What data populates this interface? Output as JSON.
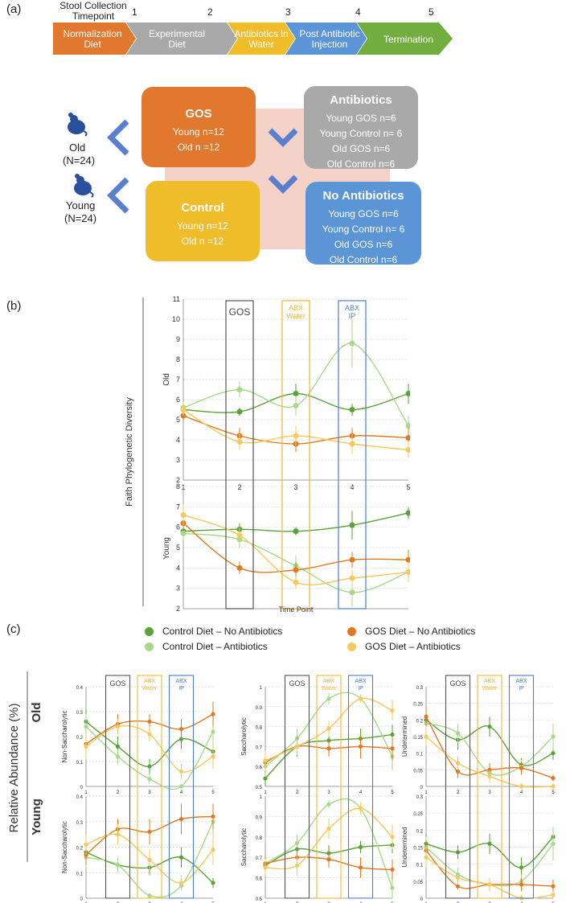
{
  "panel_a": {
    "label": "(a)",
    "timeline_title": "Stool Collection Timepoint",
    "timepoints": [
      "1",
      "2",
      "3",
      "4",
      "5"
    ],
    "steps": [
      {
        "label": "Normalization Diet",
        "color": "#e0782e"
      },
      {
        "label": "Experimental Diet",
        "color": "#a9a9a9"
      },
      {
        "label": "Antibiotics in Water",
        "color": "#efbd2a"
      },
      {
        "label": "Post Antibiotic Injection",
        "color": "#5b95d6"
      },
      {
        "label": "Termination",
        "color": "#72ad3f"
      }
    ],
    "groups": [
      {
        "label": "Old",
        "n": "(N=24)"
      },
      {
        "label": "Young",
        "n": "(N=24)"
      }
    ],
    "gos_box": {
      "title": "GOS",
      "lines": [
        "Young n=12",
        "Old n =12"
      ],
      "color": "#e0782e"
    },
    "control_box": {
      "title": "Control",
      "lines": [
        "Young n=12",
        "Old n =12"
      ],
      "color": "#efbd2a"
    },
    "abx_box": {
      "title": "Antibiotics",
      "lines": [
        "Young GOS n=6",
        "Young Control n= 6",
        "Old GOS n=6",
        "Old Control n=6"
      ],
      "color": "#a9a9a9"
    },
    "noabx_box": {
      "title": "No Antibiotics",
      "lines": [
        "Young GOS n=6",
        "Young Control n= 6",
        "Old GOS n=6",
        "Old Control n=6"
      ],
      "color": "#5b95d6"
    }
  },
  "panel_b": {
    "label": "(b)"
  },
  "panel_c": {
    "label": "(c)",
    "row_title": "Relative Abundance (%)",
    "legend": [
      {
        "label": "Control Diet – No Antibiotics",
        "color": "#5aa23a"
      },
      {
        "label": "GOS Diet – No Antibiotics",
        "color": "#e07a22"
      },
      {
        "label": "Control Diet – Antibiotics",
        "color": "#a8d98a"
      },
      {
        "label": "GOS Diet – Antibiotics",
        "color": "#f4c95d"
      }
    ]
  },
  "colors": {
    "control_noabx": "#5aa23a",
    "gos_noabx": "#e07a22",
    "control_abx": "#a8d98a",
    "gos_abx": "#f4c95d",
    "gos_win": "#555555",
    "abxw_win": "#f2b632",
    "abxip_win": "#4a7fc8"
  },
  "chart_data": [
    {
      "type": "line",
      "title": "Faith Phylogenetic Diversity – Old",
      "ylabel": "Faith Phylogenetic Diversity",
      "facet": "Old",
      "x": [
        1,
        2,
        3,
        4,
        5
      ],
      "ylim": [
        2,
        11
      ],
      "yticks": [
        2,
        3,
        4,
        5,
        6,
        7,
        8,
        9,
        10,
        11
      ],
      "windows": [
        {
          "label": "GOS",
          "x": 2
        },
        {
          "label": "ABX Water",
          "x": 3
        },
        {
          "label": "ABX IP",
          "x": 4
        }
      ],
      "series": [
        {
          "name": "Control Diet – No Antibiotics",
          "color": "#5aa23a",
          "values": [
            5.5,
            5.4,
            6.3,
            5.5,
            6.3
          ],
          "err": [
            0.3,
            0.2,
            0.5,
            0.3,
            0.5
          ]
        },
        {
          "name": "Control Diet – Antibiotics",
          "color": "#a8d98a",
          "values": [
            5.6,
            6.5,
            5.7,
            8.8,
            4.7
          ],
          "err": [
            0.3,
            0.4,
            0.5,
            1.2,
            0.5
          ]
        },
        {
          "name": "GOS Diet – No Antibiotics",
          "color": "#e07a22",
          "values": [
            5.2,
            4.2,
            3.8,
            4.2,
            4.1
          ],
          "err": [
            0.3,
            0.4,
            0.4,
            0.4,
            0.5
          ]
        },
        {
          "name": "GOS Diet – Antibiotics",
          "color": "#f4c95d",
          "values": [
            5.5,
            3.9,
            4.2,
            3.8,
            3.5
          ],
          "err": [
            0.3,
            0.4,
            0.5,
            0.5,
            0.4
          ]
        }
      ]
    },
    {
      "type": "line",
      "title": "Faith Phylogenetic Diversity – Young",
      "facet": "Young",
      "xlabel": "Time Point",
      "x": [
        1,
        2,
        3,
        4,
        5
      ],
      "ylim": [
        2,
        8
      ],
      "yticks": [
        2,
        3,
        4,
        5,
        6,
        7,
        8
      ],
      "series": [
        {
          "name": "Control Diet – No Antibiotics",
          "color": "#5aa23a",
          "values": [
            5.8,
            5.9,
            5.8,
            6.1,
            6.7
          ],
          "err": [
            0.3,
            0.3,
            0.2,
            0.7,
            0.3
          ]
        },
        {
          "name": "Control Diet – Antibiotics",
          "color": "#a8d98a",
          "values": [
            5.7,
            5.4,
            4.1,
            2.8,
            3.8
          ],
          "err": [
            0.3,
            0.4,
            0.5,
            0.7,
            0.5
          ]
        },
        {
          "name": "GOS Diet – No Antibiotics",
          "color": "#e07a22",
          "values": [
            6.2,
            4.0,
            3.9,
            4.4,
            4.4
          ],
          "err": [
            0.4,
            0.3,
            0.4,
            0.4,
            0.5
          ]
        },
        {
          "name": "GOS Diet – Antibiotics",
          "color": "#f4c95d",
          "values": [
            6.6,
            5.6,
            3.3,
            3.5,
            3.8
          ],
          "err": [
            0.5,
            0.4,
            0.3,
            0.4,
            0.5
          ]
        }
      ]
    },
    {
      "type": "line",
      "facet": "Old",
      "ylabel": "Non-Saccharolytic",
      "ylim": [
        0,
        0.4
      ],
      "yticks": [
        0,
        0.1,
        0.2,
        0.3,
        0.4
      ],
      "x": [
        1,
        2,
        3,
        4,
        5
      ],
      "series": [
        {
          "name": "Control Diet – No Antibiotics",
          "color": "#5aa23a",
          "values": [
            0.26,
            0.16,
            0.08,
            0.19,
            0.14
          ],
          "err": [
            0.05,
            0.04,
            0.03,
            0.04,
            0.04
          ]
        },
        {
          "name": "Control Diet – Antibiotics",
          "color": "#a8d98a",
          "values": [
            0.24,
            0.12,
            0.03,
            0.0,
            0.22
          ],
          "err": [
            0.05,
            0.03,
            0.02,
            0.01,
            0.06
          ]
        },
        {
          "name": "GOS Diet – No Antibiotics",
          "color": "#e07a22",
          "values": [
            0.17,
            0.25,
            0.26,
            0.23,
            0.29
          ],
          "err": [
            0.04,
            0.04,
            0.03,
            0.04,
            0.05
          ]
        },
        {
          "name": "GOS Diet – Antibiotics",
          "color": "#f4c95d",
          "values": [
            0.16,
            0.24,
            0.21,
            0.06,
            0.12
          ],
          "err": [
            0.05,
            0.03,
            0.03,
            0.03,
            0.05
          ]
        }
      ]
    },
    {
      "type": "line",
      "facet": "Old",
      "ylabel": "Saccharolytic",
      "ylim": [
        0.5,
        1.0
      ],
      "yticks": [
        0.5,
        0.6,
        0.7,
        0.8,
        0.9,
        1
      ],
      "x": [
        1,
        2,
        3,
        4,
        5
      ],
      "series": [
        {
          "name": "Control Diet – No Antibiotics",
          "color": "#5aa23a",
          "values": [
            0.54,
            0.7,
            0.73,
            0.74,
            0.76
          ],
          "err": [
            0.05,
            0.05,
            0.05,
            0.05,
            0.05
          ]
        },
        {
          "name": "Control Diet – Antibiotics",
          "color": "#a8d98a",
          "values": [
            0.6,
            0.74,
            0.94,
            0.94,
            0.65
          ],
          "err": [
            0.05,
            0.05,
            0.03,
            0.02,
            0.07
          ]
        },
        {
          "name": "GOS Diet – No Antibiotics",
          "color": "#e07a22",
          "values": [
            0.62,
            0.7,
            0.69,
            0.7,
            0.69
          ],
          "err": [
            0.05,
            0.05,
            0.04,
            0.06,
            0.06
          ]
        },
        {
          "name": "GOS Diet – Antibiotics",
          "color": "#f4c95d",
          "values": [
            0.63,
            0.7,
            0.79,
            0.94,
            0.88
          ],
          "err": [
            0.05,
            0.04,
            0.04,
            0.02,
            0.05
          ]
        }
      ]
    },
    {
      "type": "line",
      "facet": "Old",
      "ylabel": "Undetermined",
      "ylim": [
        0,
        0.3
      ],
      "yticks": [
        0,
        0.05,
        0.1,
        0.15,
        0.2,
        0.25,
        0.3
      ],
      "x": [
        1,
        2,
        3,
        4,
        5
      ],
      "series": [
        {
          "name": "Control Diet – No Antibiotics",
          "color": "#5aa23a",
          "values": [
            0.2,
            0.14,
            0.18,
            0.065,
            0.1
          ],
          "err": [
            0.02,
            0.03,
            0.03,
            0.02,
            0.02
          ]
        },
        {
          "name": "Control Diet – Antibiotics",
          "color": "#a8d98a",
          "values": [
            0.19,
            0.16,
            0.04,
            0.06,
            0.15
          ],
          "err": [
            0.02,
            0.03,
            0.02,
            0.02,
            0.04
          ]
        },
        {
          "name": "GOS Diet – No Antibiotics",
          "color": "#e07a22",
          "values": [
            0.21,
            0.045,
            0.05,
            0.055,
            0.025
          ],
          "err": [
            0.03,
            0.02,
            0.02,
            0.02,
            0.01
          ]
        },
        {
          "name": "GOS Diet – Antibiotics",
          "color": "#f4c95d",
          "values": [
            0.15,
            0.07,
            0.03,
            0.0,
            0.0
          ],
          "err": [
            0.03,
            0.02,
            0.02,
            0.01,
            0.01
          ]
        }
      ]
    },
    {
      "type": "line",
      "facet": "Young",
      "ylabel": "Non-Saccharolytic",
      "ylim": [
        0,
        0.4
      ],
      "yticks": [
        0,
        0.1,
        0.2,
        0.3,
        0.4
      ],
      "x": [
        1,
        2,
        3,
        4,
        5
      ],
      "series": [
        {
          "name": "Control Diet – No Antibiotics",
          "color": "#5aa23a",
          "values": [
            0.18,
            0.13,
            0.12,
            0.16,
            0.06
          ],
          "err": [
            0.04,
            0.02,
            0.03,
            0.04,
            0.02
          ]
        },
        {
          "name": "Control Diet – Antibiotics",
          "color": "#a8d98a",
          "values": [
            0.16,
            0.13,
            0.01,
            0.05,
            0.3
          ],
          "err": [
            0.04,
            0.03,
            0.01,
            0.02,
            0.06
          ]
        },
        {
          "name": "GOS Diet – No Antibiotics",
          "color": "#e07a22",
          "values": [
            0.17,
            0.27,
            0.26,
            0.31,
            0.32
          ],
          "err": [
            0.04,
            0.04,
            0.05,
            0.06,
            0.05
          ]
        },
        {
          "name": "GOS Diet – Antibiotics",
          "color": "#f4c95d",
          "values": [
            0.21,
            0.25,
            0.15,
            0.06,
            0.19
          ],
          "err": [
            0.04,
            0.04,
            0.04,
            0.03,
            0.06
          ]
        }
      ]
    },
    {
      "type": "line",
      "facet": "Young",
      "ylabel": "Saccharolytic",
      "ylim": [
        0.5,
        1.0
      ],
      "yticks": [
        0.5,
        0.6,
        0.7,
        0.8,
        0.9,
        1
      ],
      "x": [
        1,
        2,
        3,
        4,
        5
      ],
      "series": [
        {
          "name": "Control Diet – No Antibiotics",
          "color": "#5aa23a",
          "values": [
            0.66,
            0.74,
            0.72,
            0.75,
            0.76
          ],
          "err": [
            0.04,
            0.04,
            0.04,
            0.03,
            0.04
          ]
        },
        {
          "name": "Control Diet – Antibiotics",
          "color": "#a8d98a",
          "values": [
            0.67,
            0.77,
            0.96,
            0.94,
            0.55
          ],
          "err": [
            0.04,
            0.04,
            0.02,
            0.02,
            0.06
          ]
        },
        {
          "name": "GOS Diet – No Antibiotics",
          "color": "#e07a22",
          "values": [
            0.67,
            0.7,
            0.69,
            0.65,
            0.64
          ],
          "err": [
            0.04,
            0.05,
            0.04,
            0.05,
            0.05
          ]
        },
        {
          "name": "GOS Diet – Antibiotics",
          "color": "#f4c95d",
          "values": [
            0.65,
            0.66,
            0.84,
            0.94,
            0.8
          ],
          "err": [
            0.04,
            0.05,
            0.05,
            0.03,
            0.06
          ]
        }
      ]
    },
    {
      "type": "line",
      "facet": "Young",
      "ylabel": "Undetermined",
      "ylim": [
        0,
        0.3
      ],
      "yticks": [
        0,
        0.05,
        0.1,
        0.15,
        0.2,
        0.25,
        0.3
      ],
      "x": [
        1,
        2,
        3,
        4,
        5
      ],
      "series": [
        {
          "name": "Control Diet – No Antibiotics",
          "color": "#5aa23a",
          "values": [
            0.16,
            0.135,
            0.16,
            0.09,
            0.18
          ],
          "err": [
            0.03,
            0.02,
            0.03,
            0.03,
            0.02
          ]
        },
        {
          "name": "Control Diet – Antibiotics",
          "color": "#a8d98a",
          "values": [
            0.15,
            0.07,
            0.04,
            0.05,
            0.16
          ],
          "err": [
            0.03,
            0.02,
            0.02,
            0.02,
            0.05
          ]
        },
        {
          "name": "GOS Diet – No Antibiotics",
          "color": "#e07a22",
          "values": [
            0.14,
            0.035,
            0.04,
            0.04,
            0.035
          ],
          "err": [
            0.03,
            0.01,
            0.01,
            0.02,
            0.02
          ]
        },
        {
          "name": "GOS Diet – Antibiotics",
          "color": "#f4c95d",
          "values": [
            0.12,
            0.06,
            0.04,
            0.0,
            0.01
          ],
          "err": [
            0.03,
            0.02,
            0.02,
            0.01,
            0.01
          ]
        }
      ]
    }
  ],
  "small_common": {
    "windows": [
      {
        "label": "GOS",
        "x": 2,
        "color": "#555555"
      },
      {
        "label": "ABX Water",
        "x": 3,
        "color": "#f2b632"
      },
      {
        "label": "ABX IP",
        "x": 4,
        "color": "#4a7fc8"
      }
    ],
    "x_labels": [
      "1",
      "2",
      "3",
      "4",
      "5"
    ],
    "row_old": "Old",
    "row_young": "Young"
  }
}
